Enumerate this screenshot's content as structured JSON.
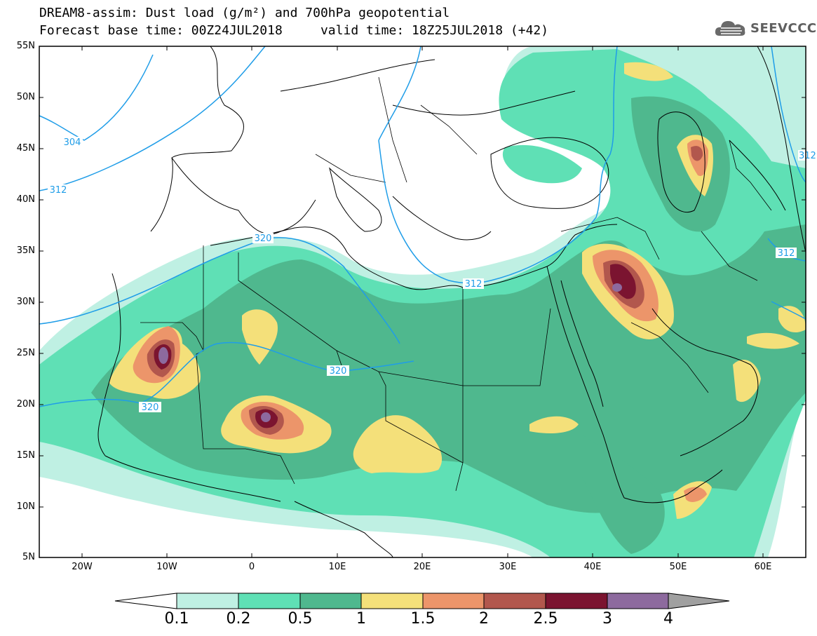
{
  "title": {
    "line1": "DREAM8-assim: Dust load (g/m²) and 700hPa geopotential",
    "line2": "Forecast base time: 00Z24JUL2018     valid time: 18Z25JUL2018 (+42)"
  },
  "logo": {
    "icon": "cloud-icon",
    "text": "SEEVCCC"
  },
  "map": {
    "lon_range": [
      -25,
      65
    ],
    "lat_range": [
      5,
      55
    ],
    "lat_ticks": [
      "55N",
      "50N",
      "45N",
      "40N",
      "35N",
      "30N",
      "25N",
      "20N",
      "15N",
      "10N",
      "5N"
    ],
    "lon_ticks": [
      "20W",
      "10W",
      "0",
      "10E",
      "20E",
      "30E",
      "40E",
      "50E",
      "60E"
    ],
    "contour_labels": [
      "304",
      "312",
      "320",
      "312",
      "320",
      "320",
      "312",
      "312"
    ]
  },
  "colorbar": {
    "labels": [
      "0.1",
      "0.2",
      "0.5",
      "1",
      "1.5",
      "2",
      "2.5",
      "3",
      "4"
    ],
    "colors": [
      "#ffffff",
      "#bff0e3",
      "#5fe0b5",
      "#4fb88e",
      "#f4e07a",
      "#ec956a",
      "#b2574d",
      "#7b1430",
      "#8d6a9e",
      "#a0a0a0"
    ]
  }
}
